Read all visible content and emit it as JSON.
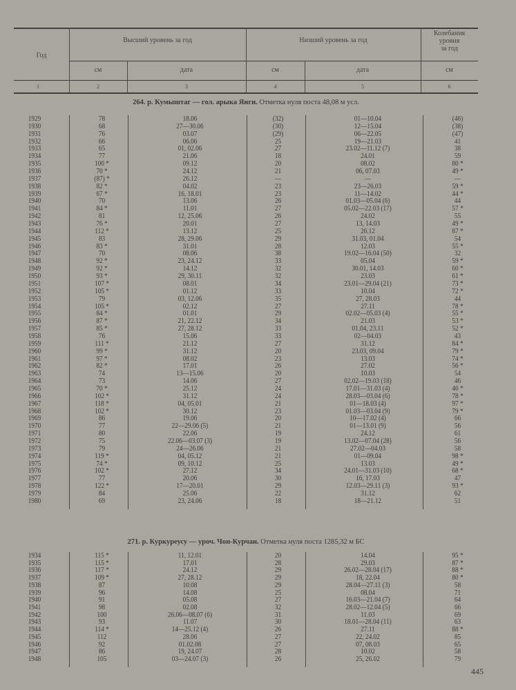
{
  "header": {
    "year": "Год",
    "max_level": "Высший уровень за год",
    "min_level": "Низший уровень за год",
    "fluctuation": [
      "Колебания",
      "уровня",
      "за год"
    ],
    "cm": "см",
    "date": "дата",
    "col_numbers": [
      "1",
      "2",
      "3",
      "4",
      "5",
      "6"
    ]
  },
  "sections": [
    {
      "title_bold": "264. р. Кумыштаг — гол. арыка Янги.",
      "title_rest": " Отметка нуля поста 48,08 м усл.",
      "rows": [
        [
          "1929",
          "78",
          "18.06",
          "(32)",
          "01—10.04",
          "(46)"
        ],
        [
          "1930",
          "68",
          "27—30.06",
          "(30)",
          "12—15.04",
          "(38)"
        ],
        [
          "1931",
          "76",
          "03.07",
          "(29)",
          "06—22.05",
          "(47)"
        ],
        [
          "1932",
          "66",
          "06.06",
          "25",
          "19—21.03",
          "41"
        ],
        [
          "1933",
          "65",
          "01, 02.06",
          "27",
          "23.02—11.12  (7)",
          "38"
        ],
        [
          "1934",
          "77",
          "21.06",
          "18",
          "24.01",
          "59"
        ],
        [
          "1935",
          "100 *",
          "09.12",
          "20",
          "08.02",
          "80 *"
        ],
        [
          "1936",
          "70 *",
          "24.12",
          "21",
          "06, 07.03",
          "49 *"
        ],
        [
          "1937",
          "(87) *",
          "26.12",
          "—",
          "—",
          "—"
        ],
        [
          "1938",
          "82 *",
          "04.02",
          "23",
          "23—26.03",
          "59 *"
        ],
        [
          "1939",
          "67 *",
          "16, 18.01",
          "23",
          "11—14.02",
          "44 *"
        ],
        [
          "1940",
          "70",
          "13.06",
          "26",
          "01.03—05.04  (6)",
          "44"
        ],
        [
          "1941",
          "84 *",
          "11.01",
          "27",
          "05.02—22.03  (17)",
          "57 *"
        ],
        [
          "1942",
          "81",
          "12, 25.06",
          "26",
          "24.02",
          "55"
        ],
        [
          "1943",
          "76 *",
          "20.01",
          "27",
          "13, 14.03",
          "49 *"
        ],
        [
          "1944",
          "112 *",
          "13.12",
          "25",
          "26.12",
          "87 *"
        ],
        [
          "1945",
          "83",
          "28, 29.06",
          "29",
          "31.03, 01.04",
          "54"
        ],
        [
          "1946",
          "83 *",
          "31.01",
          "28",
          "12.03",
          "55 *"
        ],
        [
          "1947",
          "70",
          "08.06",
          "38",
          "19.02—16.04  (50)",
          "32"
        ],
        [
          "1948",
          "92 *",
          "23, 24.12",
          "33",
          "05.04",
          "59 *"
        ],
        [
          "1949",
          "92 *",
          "14.12",
          "32",
          "30.01, 14.03",
          "60 *"
        ],
        [
          "1950",
          "93 *",
          "29, 30.11",
          "32",
          "23.03",
          "61 *"
        ],
        [
          "1951",
          "107 *",
          "08.01",
          "34",
          "23.01—29.04  (21)",
          "73 *"
        ],
        [
          "1952",
          "105 *",
          "01.12",
          "33",
          "10.04",
          "72 *"
        ],
        [
          "1953",
          "79",
          "03, 12.06",
          "35",
          "27, 28.03",
          "44"
        ],
        [
          "1954",
          "105 *",
          "02.12",
          "27",
          "27.11",
          "78 *"
        ],
        [
          "1955",
          "84 *",
          "01.01",
          "29",
          "02.02—05.03  (4)",
          "55 *"
        ],
        [
          "1956",
          "87 *",
          "21, 22.12",
          "34",
          "21.03",
          "53 *"
        ],
        [
          "1957",
          "85 *",
          "27, 28.12",
          "33",
          "01.04, 23.11",
          "52 *"
        ],
        [
          "1958",
          "76",
          "15.06",
          "33",
          "02—04.03",
          "43"
        ],
        [
          "1959",
          "111 *",
          "21.12",
          "27",
          "31.12",
          "84 *"
        ],
        [
          "1960",
          "99 *",
          "31.12",
          "20",
          "23.03, 09.04",
          "79 *"
        ],
        [
          "1961",
          "97 *",
          "08.02",
          "23",
          "13.03",
          "74 *"
        ],
        [
          "1962",
          "82 *",
          "17.01",
          "26",
          "27.02",
          "56 *"
        ],
        [
          "1963",
          "74",
          "13—15.06",
          "20",
          "10.03",
          "54"
        ],
        [
          "1964",
          "73",
          "14.06",
          "27",
          "02.02—19.03  (18)",
          "46"
        ],
        [
          "1965",
          "70 *",
          "25.12",
          "24",
          "17.01—31.03  (4)",
          "46 *"
        ],
        [
          "1966",
          "102 *",
          "31.12",
          "24",
          "28.03—03.04  (6)",
          "78 *"
        ],
        [
          "1967",
          "118 *",
          "04, 05.01",
          "21",
          "01—18.03 (4)",
          "97 *"
        ],
        [
          "1968",
          "102 *",
          "30.12",
          "23",
          "01.03—03.04  (9)",
          "79 *"
        ],
        [
          "1969",
          "86",
          "19.06",
          "20",
          "10—17.02 (4)",
          "66"
        ],
        [
          "1970",
          "77",
          "22—29.06 (5)",
          "21",
          "01—13.01 (9)",
          "56"
        ],
        [
          "1971",
          "80",
          "22.06",
          "19",
          "24.12",
          "61"
        ],
        [
          "1972",
          "75",
          "22.06—03.07  (3)",
          "19",
          "13.02—07.04  (28)",
          "56"
        ],
        [
          "1973",
          "79",
          "24—26.06",
          "21",
          "27.02—04.03",
          "58"
        ],
        [
          "1974",
          "119 *",
          "04, 05.12",
          "21",
          "01—09.04",
          "98 *"
        ],
        [
          "1975",
          "74 *",
          "09, 10.12",
          "25",
          "13.03",
          "49 *"
        ],
        [
          "1976",
          "102 *",
          "27.12",
          "34",
          "24.01—31.03  (10)",
          "68 *"
        ],
        [
          "1977",
          "77",
          "20.06",
          "30",
          "16, 17.03",
          "47"
        ],
        [
          "1978",
          "122 *",
          "17—20.01",
          "29",
          "12.03—29.11  (3)",
          "93 *"
        ],
        [
          "1979",
          "84",
          "25.06",
          "22",
          "31.12",
          "62"
        ],
        [
          "1980",
          "69",
          "23, 24.06",
          "18",
          "18—21.12",
          "51"
        ]
      ]
    },
    {
      "title_bold": "271. р. Куркуреусу — уроч. Чон-Курчан.",
      "title_rest": " Отметка нуля поста 1285,32 м БС",
      "rows": [
        [
          "1934",
          "115 *",
          "11, 12.01",
          "20",
          "14.04",
          "95 *"
        ],
        [
          "1935",
          "115 *",
          "17.01",
          "28",
          "29.03",
          "87 *"
        ],
        [
          "1936",
          "117 *",
          "24.12",
          "29",
          "26.02—28.04  (17)",
          "88 *"
        ],
        [
          "1937",
          "109 *",
          "27, 28.12",
          "29",
          "18, 22.04",
          "80 *"
        ],
        [
          "1938",
          "87",
          "10.08",
          "29",
          "28.04—27.11  (3)",
          "58"
        ],
        [
          "1939",
          "96",
          "14.08",
          "25",
          "08.04",
          "71"
        ],
        [
          "1940",
          "91",
          "05.08",
          "27",
          "16.03—21.04  (7)",
          "64"
        ],
        [
          "1941",
          "98",
          "02.08",
          "32",
          "28.02—12.04  (5)",
          "66"
        ],
        [
          "1942",
          "100",
          "26.06—08.07  (6)",
          "31",
          "11.03",
          "69"
        ],
        [
          "1943",
          "93",
          "11.07",
          "30",
          "18.01—28.04  (11)",
          "63"
        ],
        [
          "1944",
          "114 *",
          "14—25.12 (4)",
          "26",
          "27.11",
          "88 *"
        ],
        [
          "1945",
          "112",
          "28.06",
          "27",
          "22, 24.02",
          "85"
        ],
        [
          "1946",
          "92",
          "01.02.08",
          "27",
          "07, 08.03",
          "65"
        ],
        [
          "1947",
          "86",
          "19, 24.07",
          "28",
          "10.02",
          "58"
        ],
        [
          "1948",
          "105",
          "03—24.07 (3)",
          "26",
          "25, 26.02",
          "79"
        ]
      ]
    }
  ],
  "page_number": "445"
}
